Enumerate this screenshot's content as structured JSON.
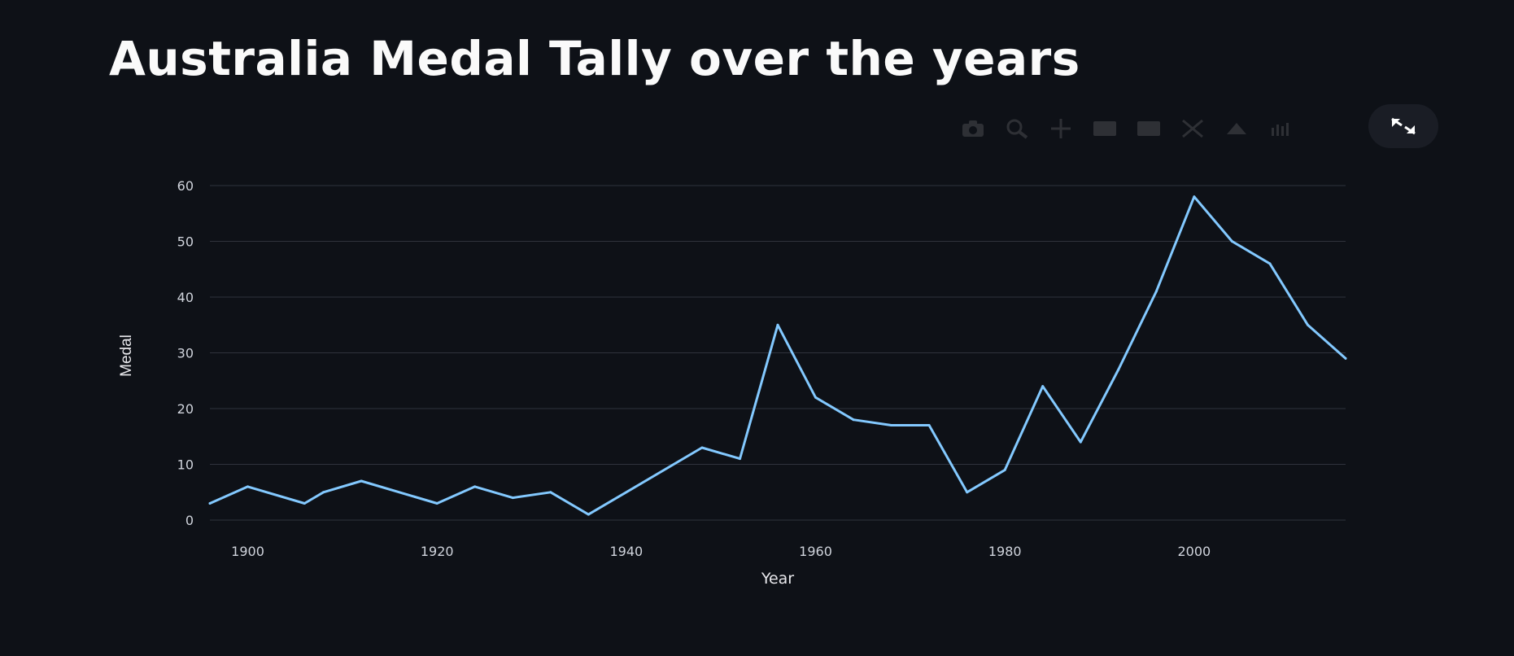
{
  "page": {
    "title": "Australia Medal Tally over the years"
  },
  "toolbar": {
    "icons": [
      "camera-icon",
      "zoom-icon",
      "pan-icon",
      "zoom-in-icon",
      "zoom-out-icon",
      "autoscale-icon",
      "reset-axes-icon",
      "plotly-logo-icon"
    ],
    "expand_icon": "fullscreen-icon"
  },
  "chart_data": {
    "type": "line",
    "title": "Australia Medal Tally over the years",
    "xlabel": "Year",
    "ylabel": "Medal",
    "x": [
      1896,
      1900,
      1906,
      1908,
      1912,
      1920,
      1924,
      1928,
      1932,
      1936,
      1948,
      1952,
      1956,
      1960,
      1964,
      1968,
      1972,
      1976,
      1980,
      1984,
      1988,
      1992,
      1996,
      2000,
      2004,
      2008,
      2012,
      2016
    ],
    "series": [
      {
        "name": "Medal",
        "color": "#83c9ff",
        "values": [
          3,
          6,
          3,
          5,
          7,
          3,
          6,
          4,
          5,
          1,
          13,
          11,
          35,
          22,
          18,
          17,
          17,
          5,
          9,
          24,
          14,
          27,
          41,
          58,
          50,
          46,
          35,
          29
        ]
      }
    ],
    "xlim": [
      1896,
      2016
    ],
    "ylim": [
      0,
      60
    ],
    "xticks": [
      1900,
      1920,
      1940,
      1960,
      1980,
      2000
    ],
    "yticks": [
      0,
      10,
      20,
      30,
      40,
      50,
      60
    ],
    "grid": true,
    "legend": "none"
  }
}
